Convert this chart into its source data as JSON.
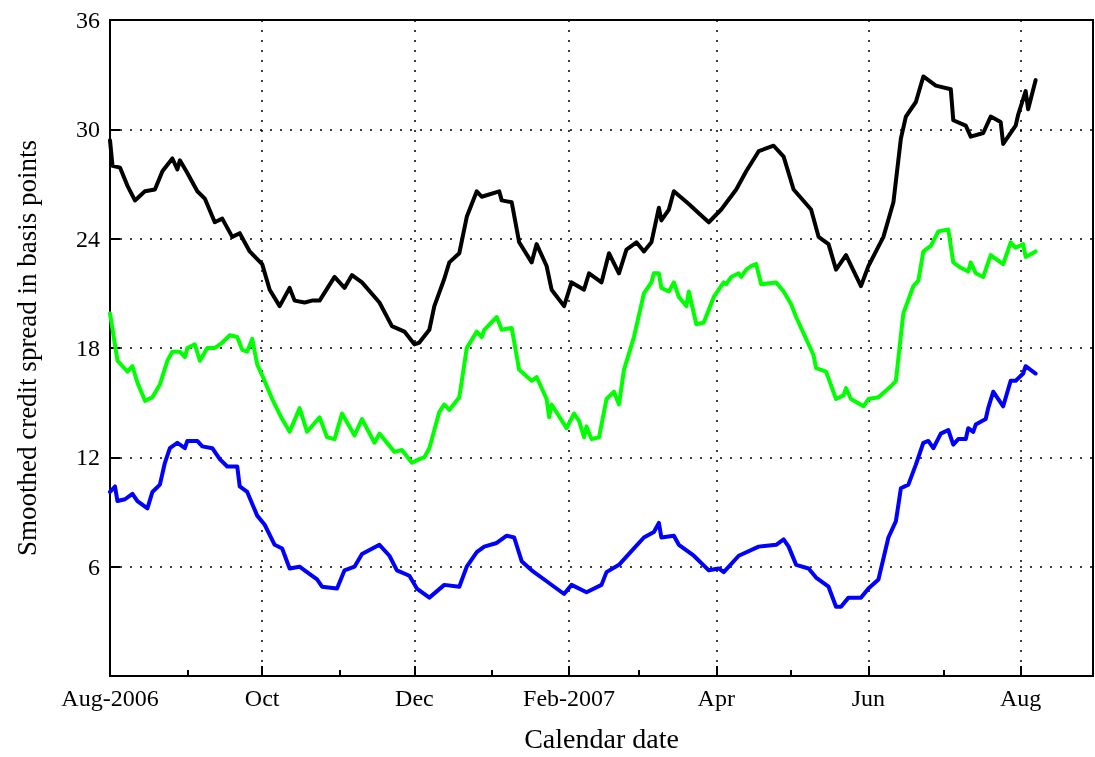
{
  "chart_data": {
    "type": "line",
    "xlabel": "Calendar date",
    "ylabel": "Smoothed credit spread in basis points",
    "xlim": [
      "2006-08-01",
      "2007-08-30"
    ],
    "ylim": [
      0,
      36
    ],
    "xticks": [
      {
        "value": "2006-08-01",
        "label": "Aug-2006"
      },
      {
        "value": "2006-09-01",
        "label": null
      },
      {
        "value": "2006-10-01",
        "label": "Oct"
      },
      {
        "value": "2006-11-01",
        "label": null
      },
      {
        "value": "2006-12-01",
        "label": "Dec"
      },
      {
        "value": "2007-01-01",
        "label": null
      },
      {
        "value": "2007-02-01",
        "label": "Feb-2007"
      },
      {
        "value": "2007-03-01",
        "label": null
      },
      {
        "value": "2007-04-01",
        "label": "Apr"
      },
      {
        "value": "2007-05-01",
        "label": null
      },
      {
        "value": "2007-06-01",
        "label": "Jun"
      },
      {
        "value": "2007-07-01",
        "label": null
      },
      {
        "value": "2007-08-01",
        "label": "Aug"
      }
    ],
    "yticks": [
      {
        "value": 0,
        "label": null
      },
      6,
      12,
      18,
      24,
      30,
      36
    ],
    "grid": true,
    "legend": false,
    "marker": "none",
    "line_style": "solid",
    "series": [
      {
        "color": "#000000",
        "x": [
          "2006-08-01",
          "2006-08-02",
          "2006-08-05",
          "2006-08-08",
          "2006-08-11",
          "2006-08-15",
          "2006-08-19",
          "2006-08-22",
          "2006-08-26",
          "2006-08-28",
          "2006-08-29",
          "2006-09-01",
          "2006-09-05",
          "2006-09-08",
          "2006-09-12",
          "2006-09-15",
          "2006-09-19",
          "2006-09-22",
          "2006-09-26",
          "2006-10-01",
          "2006-10-04",
          "2006-10-08",
          "2006-10-12",
          "2006-10-14",
          "2006-10-18",
          "2006-10-21",
          "2006-10-24",
          "2006-10-30",
          "2006-11-03",
          "2006-11-06",
          "2006-11-10",
          "2006-11-17",
          "2006-11-22",
          "2006-11-27",
          "2006-12-01",
          "2006-12-03",
          "2006-12-07",
          "2006-12-09",
          "2006-12-13",
          "2006-12-15",
          "2006-12-19",
          "2006-12-22",
          "2006-12-26",
          "2006-12-28",
          "2007-01-04",
          "2007-01-05",
          "2007-01-09",
          "2007-01-12",
          "2007-01-17",
          "2007-01-19",
          "2007-01-23",
          "2007-01-25",
          "2007-01-30",
          "2007-02-02",
          "2007-02-07",
          "2007-02-09",
          "2007-02-14",
          "2007-02-17",
          "2007-02-21",
          "2007-02-24",
          "2007-02-28",
          "2007-03-03",
          "2007-03-06",
          "2007-03-09",
          "2007-03-10",
          "2007-03-13",
          "2007-03-15",
          "2007-03-21",
          "2007-03-25",
          "2007-03-29",
          "2007-04-03",
          "2007-04-09",
          "2007-04-13",
          "2007-04-18",
          "2007-04-24",
          "2007-04-28",
          "2007-05-02",
          "2007-05-09",
          "2007-05-12",
          "2007-05-16",
          "2007-05-19",
          "2007-05-23",
          "2007-05-29",
          "2007-06-01",
          "2007-06-07",
          "2007-06-11",
          "2007-06-14",
          "2007-06-16",
          "2007-06-20",
          "2007-06-23",
          "2007-06-28",
          "2007-07-04",
          "2007-07-05",
          "2007-07-10",
          "2007-07-12",
          "2007-07-17",
          "2007-07-20",
          "2007-07-24",
          "2007-07-25",
          "2007-07-30",
          "2007-07-31",
          "2007-08-03",
          "2007-08-04",
          "2007-08-07"
        ],
        "values": [
          29.4,
          28.0,
          27.9,
          26.9,
          26.1,
          26.6,
          26.7,
          27.7,
          28.4,
          27.8,
          28.3,
          27.6,
          26.6,
          26.2,
          24.9,
          25.1,
          24.1,
          24.3,
          23.3,
          22.6,
          21.2,
          20.3,
          21.3,
          20.6,
          20.5,
          20.6,
          20.6,
          21.9,
          21.3,
          22.0,
          21.6,
          20.5,
          19.2,
          18.9,
          18.2,
          18.3,
          19.0,
          20.3,
          21.8,
          22.7,
          23.2,
          25.2,
          26.6,
          26.3,
          26.6,
          26.1,
          26.0,
          23.8,
          22.7,
          23.7,
          22.5,
          21.2,
          20.3,
          21.6,
          21.2,
          22.1,
          21.6,
          23.2,
          22.1,
          23.4,
          23.8,
          23.3,
          23.8,
          25.7,
          25.0,
          25.6,
          26.6,
          25.9,
          25.4,
          24.9,
          25.6,
          26.7,
          27.7,
          28.8,
          29.1,
          28.5,
          26.7,
          25.6,
          24.1,
          23.7,
          22.3,
          23.1,
          21.4,
          22.5,
          24.1,
          26.0,
          29.5,
          30.7,
          31.5,
          32.9,
          32.4,
          32.2,
          30.5,
          30.2,
          29.6,
          29.8,
          30.7,
          30.4,
          29.2,
          30.2,
          30.8,
          32.1,
          31.1,
          32.7
        ]
      },
      {
        "color": "#00ff00",
        "x": [
          "2006-08-01",
          "2006-08-04",
          "2006-08-08",
          "2006-08-10",
          "2006-08-12",
          "2006-08-15",
          "2006-08-18",
          "2006-08-21",
          "2006-08-24",
          "2006-08-26",
          "2006-08-29",
          "2006-08-31",
          "2006-09-01",
          "2006-09-04",
          "2006-09-06",
          "2006-09-09",
          "2006-09-12",
          "2006-09-15",
          "2006-09-18",
          "2006-09-21",
          "2006-09-23",
          "2006-09-25",
          "2006-09-27",
          "2006-09-29",
          "2006-10-01",
          "2006-10-05",
          "2006-10-09",
          "2006-10-12",
          "2006-10-16",
          "2006-10-19",
          "2006-10-24",
          "2006-10-27",
          "2006-10-30",
          "2006-11-02",
          "2006-11-07",
          "2006-11-10",
          "2006-11-15",
          "2006-11-17",
          "2006-11-23",
          "2006-11-26",
          "2006-11-30",
          "2006-12-03",
          "2006-12-05",
          "2006-12-07",
          "2006-12-09",
          "2006-12-11",
          "2006-12-13",
          "2006-12-15",
          "2006-12-19",
          "2006-12-22",
          "2006-12-26",
          "2006-12-28",
          "2006-12-29",
          "2007-01-03",
          "2007-01-05",
          "2007-01-09",
          "2007-01-12",
          "2007-01-17",
          "2007-01-19",
          "2007-01-23",
          "2007-01-24",
          "2007-01-25",
          "2007-01-31",
          "2007-02-03",
          "2007-02-05",
          "2007-02-07",
          "2007-02-08",
          "2007-02-10",
          "2007-02-13",
          "2007-02-16",
          "2007-02-19",
          "2007-02-21",
          "2007-02-23",
          "2007-02-27",
          "2007-03-03",
          "2007-03-06",
          "2007-03-07",
          "2007-03-09",
          "2007-03-10",
          "2007-03-13",
          "2007-03-15",
          "2007-03-17",
          "2007-03-20",
          "2007-03-21",
          "2007-03-24",
          "2007-03-27",
          "2007-03-29",
          "2007-03-31",
          "2007-04-04",
          "2007-04-05",
          "2007-04-07",
          "2007-04-10",
          "2007-04-11",
          "2007-04-13",
          "2007-04-15",
          "2007-04-17",
          "2007-04-19",
          "2007-04-25",
          "2007-04-28",
          "2007-05-01",
          "2007-05-03",
          "2007-05-06",
          "2007-05-10",
          "2007-05-11",
          "2007-05-15",
          "2007-05-19",
          "2007-05-22",
          "2007-05-23",
          "2007-05-25",
          "2007-05-30",
          "2007-06-01",
          "2007-06-05",
          "2007-06-10",
          "2007-06-12",
          "2007-06-14",
          "2007-06-15",
          "2007-06-19",
          "2007-06-21",
          "2007-06-23",
          "2007-06-26",
          "2007-06-29",
          "2007-07-03",
          "2007-07-05",
          "2007-07-08",
          "2007-07-11",
          "2007-07-12",
          "2007-07-14",
          "2007-07-17",
          "2007-07-20",
          "2007-07-23",
          "2007-07-25",
          "2007-07-28",
          "2007-07-30",
          "2007-08-02",
          "2007-08-03",
          "2007-08-07"
        ],
        "values": [
          19.9,
          17.3,
          16.7,
          17.0,
          16.1,
          15.1,
          15.3,
          16.0,
          17.3,
          17.8,
          17.8,
          17.5,
          18.0,
          18.2,
          17.3,
          18.0,
          18.0,
          18.3,
          18.7,
          18.6,
          17.9,
          17.8,
          18.5,
          17.1,
          16.5,
          15.2,
          14.1,
          13.4,
          14.7,
          13.4,
          14.2,
          13.1,
          13.0,
          14.4,
          13.2,
          14.1,
          12.8,
          13.3,
          12.3,
          12.4,
          11.7,
          11.9,
          12.0,
          12.5,
          13.5,
          14.5,
          14.9,
          14.6,
          15.3,
          18.0,
          18.9,
          18.6,
          19.0,
          19.7,
          19.0,
          19.1,
          16.8,
          16.2,
          16.4,
          15.2,
          14.2,
          14.9,
          13.6,
          14.4,
          14.0,
          13.1,
          13.7,
          13.0,
          13.1,
          15.2,
          15.6,
          14.9,
          16.8,
          18.6,
          21.0,
          21.6,
          22.1,
          22.1,
          21.3,
          21.1,
          21.6,
          20.8,
          20.3,
          21.1,
          19.3,
          19.4,
          20.1,
          20.8,
          21.6,
          21.5,
          21.9,
          22.1,
          21.9,
          22.3,
          22.5,
          22.6,
          21.5,
          21.6,
          21.1,
          20.4,
          19.7,
          18.8,
          17.6,
          16.9,
          16.7,
          15.2,
          15.4,
          15.8,
          15.2,
          14.8,
          15.2,
          15.3,
          15.9,
          16.2,
          18.7,
          19.9,
          21.4,
          21.7,
          23.3,
          23.6,
          24.4,
          24.5,
          22.7,
          22.4,
          22.2,
          22.7,
          22.1,
          21.9,
          23.1,
          22.8,
          22.6,
          23.8,
          23.5,
          23.7,
          23.0,
          23.3
        ]
      },
      {
        "color": "#0000ff",
        "x": [
          "2006-08-01",
          "2006-08-03",
          "2006-08-04",
          "2006-08-07",
          "2006-08-10",
          "2006-08-12",
          "2006-08-16",
          "2006-08-18",
          "2006-08-21",
          "2006-08-23",
          "2006-08-25",
          "2006-08-28",
          "2006-08-31",
          "2006-09-01",
          "2006-09-05",
          "2006-09-07",
          "2006-09-11",
          "2006-09-14",
          "2006-09-17",
          "2006-09-21",
          "2006-09-22",
          "2006-09-25",
          "2006-09-29",
          "2006-10-02",
          "2006-10-06",
          "2006-10-09",
          "2006-10-12",
          "2006-10-16",
          "2006-10-18",
          "2006-10-23",
          "2006-10-25",
          "2006-10-31",
          "2006-11-03",
          "2006-11-07",
          "2006-11-10",
          "2006-11-17",
          "2006-11-21",
          "2006-11-24",
          "2006-11-29",
          "2006-12-02",
          "2006-12-07",
          "2006-12-13",
          "2006-12-19",
          "2006-12-22",
          "2006-12-26",
          "2006-12-29",
          "2007-01-03",
          "2007-01-07",
          "2007-01-10",
          "2007-01-13",
          "2007-01-17",
          "2007-01-23",
          "2007-01-30",
          "2007-02-02",
          "2007-02-08",
          "2007-02-14",
          "2007-02-16",
          "2007-02-21",
          "2007-02-27",
          "2007-03-03",
          "2007-03-07",
          "2007-03-09",
          "2007-03-10",
          "2007-03-15",
          "2007-03-17",
          "2007-03-23",
          "2007-03-29",
          "2007-04-02",
          "2007-04-04",
          "2007-04-10",
          "2007-04-18",
          "2007-04-25",
          "2007-04-28",
          "2007-04-30",
          "2007-05-03",
          "2007-05-08",
          "2007-05-11",
          "2007-05-16",
          "2007-05-19",
          "2007-05-21",
          "2007-05-24",
          "2007-05-29",
          "2007-06-01",
          "2007-06-05",
          "2007-06-09",
          "2007-06-12",
          "2007-06-14",
          "2007-06-17",
          "2007-06-20",
          "2007-06-23",
          "2007-06-25",
          "2007-06-27",
          "2007-06-30",
          "2007-07-03",
          "2007-07-05",
          "2007-07-07",
          "2007-07-10",
          "2007-07-11",
          "2007-07-13",
          "2007-07-14",
          "2007-07-18",
          "2007-07-19",
          "2007-07-21",
          "2007-07-25",
          "2007-07-28",
          "2007-07-30",
          "2007-08-02",
          "2007-08-03",
          "2007-08-07"
        ],
        "values": [
          10.1,
          10.4,
          9.6,
          9.7,
          10.0,
          9.6,
          9.2,
          10.1,
          10.5,
          11.7,
          12.5,
          12.8,
          12.5,
          12.9,
          12.9,
          12.6,
          12.5,
          11.9,
          11.5,
          11.5,
          10.4,
          10.1,
          8.8,
          8.3,
          7.2,
          7.0,
          5.9,
          6.0,
          5.8,
          5.3,
          4.9,
          4.8,
          5.8,
          6.0,
          6.7,
          7.2,
          6.6,
          5.8,
          5.5,
          4.8,
          4.3,
          5.0,
          4.9,
          6.0,
          6.8,
          7.1,
          7.3,
          7.7,
          7.6,
          6.3,
          5.8,
          5.2,
          4.5,
          5.0,
          4.6,
          5.0,
          5.7,
          6.1,
          7.0,
          7.6,
          7.9,
          8.4,
          7.6,
          7.7,
          7.2,
          6.6,
          5.8,
          5.9,
          5.7,
          6.6,
          7.1,
          7.2,
          7.5,
          7.1,
          6.1,
          5.9,
          5.4,
          4.9,
          3.8,
          3.8,
          4.3,
          4.3,
          4.8,
          5.3,
          7.6,
          8.5,
          10.3,
          10.5,
          11.6,
          12.8,
          12.9,
          12.5,
          13.3,
          13.5,
          12.7,
          13.0,
          13.0,
          13.6,
          13.4,
          13.8,
          14.1,
          14.7,
          15.6,
          14.8,
          16.2,
          16.2,
          16.6,
          17.0,
          16.6
        ]
      }
    ]
  }
}
